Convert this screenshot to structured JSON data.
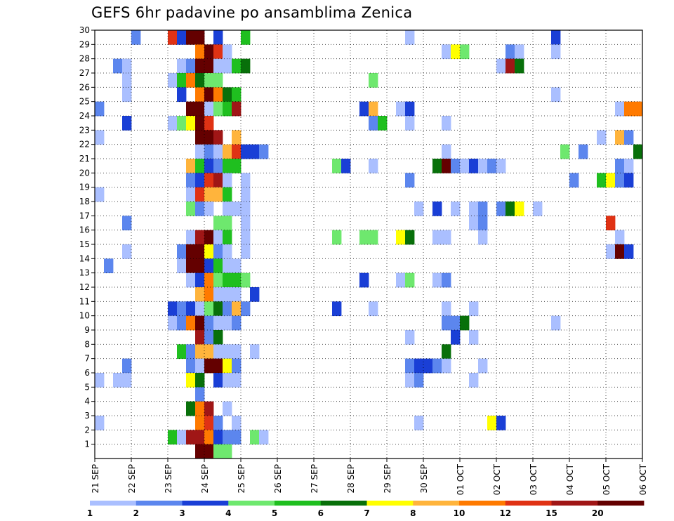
{
  "chart_data": {
    "type": "heatmap",
    "title": "GEFS 6hr padavine po ansamblima Zenica",
    "xlabel": "",
    "ylabel": "",
    "x_tick_labels": [
      "21 SEP",
      "22 SEP",
      "23 SEP",
      "24 SEP",
      "25 SEP",
      "26 SEP",
      "27 SEP",
      "28 SEP",
      "29 SEP",
      "30 SEP",
      "01 OCT",
      "02 OCT",
      "03 OCT",
      "04 OCT",
      "05 OCT",
      "06 OCT"
    ],
    "x_steps_per_day": 4,
    "x_range": [
      0,
      60
    ],
    "y_range": [
      0,
      30
    ],
    "y_tick_labels": [
      1,
      2,
      3,
      4,
      5,
      6,
      7,
      8,
      9,
      10,
      11,
      12,
      13,
      14,
      15,
      16,
      17,
      18,
      19,
      20,
      21,
      22,
      23,
      24,
      25,
      26,
      27,
      28,
      29,
      30
    ],
    "grid": true,
    "colorbar": {
      "position": "bottom",
      "labels": [
        "1",
        "2",
        "3",
        "4",
        "5",
        "6",
        "7",
        "8",
        "10",
        "12",
        "15",
        "20"
      ],
      "colors": [
        "#aabfff",
        "#5c86ee",
        "#1a3fd6",
        "#6ee86e",
        "#1fbf1f",
        "#08700a",
        "#ffff00",
        "#ffb43c",
        "#ff7a00",
        "#e03214",
        "#a01616",
        "#640000"
      ]
    },
    "cells": [
      {
        "y": 30,
        "cells": [
          [
            4,
            1
          ],
          [
            8,
            9
          ],
          [
            9,
            2
          ],
          [
            10,
            11
          ],
          [
            11,
            11
          ],
          [
            13,
            2
          ],
          [
            16,
            4
          ],
          [
            34,
            0
          ],
          [
            50,
            2
          ]
        ]
      },
      {
        "y": 29,
        "cells": [
          [
            11,
            8
          ],
          [
            12,
            11
          ],
          [
            13,
            9
          ],
          [
            14,
            0
          ],
          [
            38,
            0
          ],
          [
            39,
            6
          ],
          [
            40,
            3
          ],
          [
            45,
            1
          ],
          [
            46,
            0
          ],
          [
            50,
            0
          ]
        ]
      },
      {
        "y": 28,
        "cells": [
          [
            2,
            1
          ],
          [
            3,
            0
          ],
          [
            9,
            0
          ],
          [
            10,
            1
          ],
          [
            11,
            11
          ],
          [
            12,
            11
          ],
          [
            13,
            0
          ],
          [
            14,
            0
          ],
          [
            15,
            4
          ],
          [
            16,
            5
          ],
          [
            44,
            0
          ],
          [
            45,
            10
          ],
          [
            46,
            5
          ]
        ]
      },
      {
        "y": 27,
        "cells": [
          [
            3,
            0
          ],
          [
            8,
            0
          ],
          [
            9,
            4
          ],
          [
            10,
            8
          ],
          [
            11,
            5
          ],
          [
            12,
            3
          ],
          [
            13,
            3
          ],
          [
            30,
            3
          ]
        ]
      },
      {
        "y": 26,
        "cells": [
          [
            3,
            0
          ],
          [
            9,
            2
          ],
          [
            11,
            8
          ],
          [
            12,
            11
          ],
          [
            13,
            8
          ],
          [
            14,
            5
          ],
          [
            15,
            4
          ],
          [
            50,
            0
          ]
        ]
      },
      {
        "y": 25,
        "cells": [
          [
            0,
            1
          ],
          [
            10,
            11
          ],
          [
            11,
            11
          ],
          [
            12,
            0
          ],
          [
            13,
            3
          ],
          [
            14,
            4
          ],
          [
            15,
            10
          ],
          [
            29,
            2
          ],
          [
            30,
            7
          ],
          [
            33,
            0
          ],
          [
            34,
            2
          ],
          [
            57,
            0
          ],
          [
            58,
            8
          ],
          [
            59,
            8
          ]
        ]
      },
      {
        "y": 24,
        "cells": [
          [
            3,
            2
          ],
          [
            8,
            0
          ],
          [
            9,
            3
          ],
          [
            10,
            6
          ],
          [
            11,
            11
          ],
          [
            12,
            9
          ],
          [
            30,
            1
          ],
          [
            31,
            4
          ],
          [
            34,
            0
          ],
          [
            38,
            0
          ]
        ]
      },
      {
        "y": 23,
        "cells": [
          [
            0,
            0
          ],
          [
            11,
            11
          ],
          [
            12,
            11
          ],
          [
            13,
            10
          ],
          [
            15,
            7
          ],
          [
            55,
            0
          ],
          [
            57,
            7
          ],
          [
            58,
            1
          ]
        ]
      },
      {
        "y": 22,
        "cells": [
          [
            11,
            0
          ],
          [
            12,
            1
          ],
          [
            13,
            0
          ],
          [
            14,
            7
          ],
          [
            15,
            9
          ],
          [
            16,
            2
          ],
          [
            17,
            2
          ],
          [
            18,
            1
          ],
          [
            38,
            0
          ],
          [
            51,
            3
          ],
          [
            53,
            1
          ],
          [
            59,
            5
          ]
        ]
      },
      {
        "y": 21,
        "cells": [
          [
            10,
            7
          ],
          [
            11,
            4
          ],
          [
            12,
            2
          ],
          [
            13,
            1
          ],
          [
            14,
            4
          ],
          [
            15,
            4
          ],
          [
            26,
            3
          ],
          [
            27,
            2
          ],
          [
            30,
            0
          ],
          [
            37,
            5
          ],
          [
            38,
            11
          ],
          [
            39,
            1
          ],
          [
            40,
            0
          ],
          [
            41,
            2
          ],
          [
            42,
            0
          ],
          [
            43,
            1
          ],
          [
            44,
            0
          ],
          [
            57,
            1
          ],
          [
            58,
            0
          ]
        ]
      },
      {
        "y": 20,
        "cells": [
          [
            10,
            1
          ],
          [
            11,
            2
          ],
          [
            12,
            9
          ],
          [
            13,
            10
          ],
          [
            14,
            0
          ],
          [
            16,
            0
          ],
          [
            34,
            1
          ],
          [
            52,
            1
          ],
          [
            55,
            4
          ],
          [
            56,
            6
          ],
          [
            57,
            1
          ],
          [
            58,
            2
          ]
        ]
      },
      {
        "y": 19,
        "cells": [
          [
            0,
            0
          ],
          [
            10,
            0
          ],
          [
            11,
            9
          ],
          [
            12,
            7
          ],
          [
            13,
            7
          ],
          [
            14,
            4
          ],
          [
            16,
            0
          ]
        ]
      },
      {
        "y": 18,
        "cells": [
          [
            10,
            3
          ],
          [
            11,
            1
          ],
          [
            12,
            0
          ],
          [
            14,
            0
          ],
          [
            15,
            0
          ],
          [
            16,
            0
          ],
          [
            35,
            0
          ],
          [
            37,
            2
          ],
          [
            39,
            0
          ],
          [
            41,
            0
          ],
          [
            42,
            1
          ],
          [
            44,
            1
          ],
          [
            45,
            5
          ],
          [
            46,
            6
          ],
          [
            48,
            0
          ]
        ]
      },
      {
        "y": 17,
        "cells": [
          [
            3,
            1
          ],
          [
            13,
            3
          ],
          [
            14,
            3
          ],
          [
            16,
            0
          ],
          [
            41,
            0
          ],
          [
            42,
            1
          ],
          [
            56,
            9
          ]
        ]
      },
      {
        "y": 16,
        "cells": [
          [
            10,
            0
          ],
          [
            11,
            10
          ],
          [
            12,
            11
          ],
          [
            13,
            0
          ],
          [
            14,
            4
          ],
          [
            16,
            0
          ],
          [
            26,
            3
          ],
          [
            29,
            3
          ],
          [
            30,
            3
          ],
          [
            33,
            6
          ],
          [
            34,
            5
          ],
          [
            37,
            0
          ],
          [
            38,
            0
          ],
          [
            42,
            0
          ],
          [
            57,
            0
          ]
        ]
      },
      {
        "y": 15,
        "cells": [
          [
            3,
            0
          ],
          [
            9,
            1
          ],
          [
            10,
            11
          ],
          [
            11,
            11
          ],
          [
            12,
            6
          ],
          [
            13,
            1
          ],
          [
            14,
            0
          ],
          [
            16,
            0
          ],
          [
            56,
            0
          ],
          [
            57,
            11
          ],
          [
            58,
            2
          ]
        ]
      },
      {
        "y": 14,
        "cells": [
          [
            1,
            1
          ],
          [
            9,
            0
          ],
          [
            10,
            11
          ],
          [
            11,
            11
          ],
          [
            12,
            2
          ],
          [
            13,
            4
          ],
          [
            14,
            0
          ],
          [
            15,
            0
          ]
        ]
      },
      {
        "y": 13,
        "cells": [
          [
            10,
            0
          ],
          [
            11,
            2
          ],
          [
            12,
            8
          ],
          [
            13,
            3
          ],
          [
            14,
            4
          ],
          [
            15,
            4
          ],
          [
            16,
            3
          ],
          [
            29,
            2
          ],
          [
            33,
            0
          ],
          [
            34,
            3
          ],
          [
            37,
            0
          ],
          [
            38,
            1
          ]
        ]
      },
      {
        "y": 12,
        "cells": [
          [
            11,
            7
          ],
          [
            12,
            8
          ],
          [
            13,
            0
          ],
          [
            14,
            0
          ],
          [
            15,
            0
          ],
          [
            17,
            2
          ]
        ]
      },
      {
        "y": 11,
        "cells": [
          [
            8,
            2
          ],
          [
            9,
            1
          ],
          [
            10,
            2
          ],
          [
            11,
            0
          ],
          [
            12,
            3
          ],
          [
            13,
            5
          ],
          [
            14,
            1
          ],
          [
            15,
            7
          ],
          [
            16,
            1
          ],
          [
            26,
            2
          ],
          [
            30,
            0
          ],
          [
            38,
            0
          ],
          [
            41,
            0
          ]
        ]
      },
      {
        "y": 10,
        "cells": [
          [
            8,
            0
          ],
          [
            9,
            1
          ],
          [
            10,
            8
          ],
          [
            11,
            11
          ],
          [
            12,
            1
          ],
          [
            13,
            0
          ],
          [
            14,
            0
          ],
          [
            15,
            1
          ],
          [
            38,
            1
          ],
          [
            39,
            1
          ],
          [
            40,
            5
          ],
          [
            50,
            0
          ]
        ]
      },
      {
        "y": 9,
        "cells": [
          [
            11,
            10
          ],
          [
            12,
            1
          ],
          [
            13,
            5
          ],
          [
            34,
            0
          ],
          [
            39,
            2
          ],
          [
            41,
            0
          ]
        ]
      },
      {
        "y": 8,
        "cells": [
          [
            9,
            4
          ],
          [
            10,
            1
          ],
          [
            11,
            7
          ],
          [
            12,
            7
          ],
          [
            13,
            0
          ],
          [
            14,
            0
          ],
          [
            15,
            0
          ],
          [
            17,
            0
          ],
          [
            38,
            5
          ]
        ]
      },
      {
        "y": 7,
        "cells": [
          [
            3,
            1
          ],
          [
            10,
            1
          ],
          [
            11,
            0
          ],
          [
            12,
            11
          ],
          [
            13,
            11
          ],
          [
            14,
            6
          ],
          [
            15,
            1
          ],
          [
            34,
            1
          ],
          [
            35,
            2
          ],
          [
            36,
            2
          ],
          [
            37,
            1
          ],
          [
            38,
            0
          ],
          [
            42,
            0
          ]
        ]
      },
      {
        "y": 6,
        "cells": [
          [
            0,
            0
          ],
          [
            2,
            0
          ],
          [
            3,
            0
          ],
          [
            10,
            6
          ],
          [
            11,
            5
          ],
          [
            13,
            2
          ],
          [
            14,
            0
          ],
          [
            15,
            0
          ],
          [
            34,
            0
          ],
          [
            35,
            1
          ],
          [
            41,
            0
          ]
        ]
      },
      {
        "y": 5,
        "cells": [
          [
            11,
            1
          ]
        ]
      },
      {
        "y": 4,
        "cells": [
          [
            10,
            5
          ],
          [
            11,
            8
          ],
          [
            12,
            10
          ],
          [
            14,
            0
          ]
        ]
      },
      {
        "y": 3,
        "cells": [
          [
            0,
            0
          ],
          [
            11,
            8
          ],
          [
            12,
            9
          ],
          [
            13,
            1
          ],
          [
            15,
            0
          ],
          [
            35,
            0
          ],
          [
            43,
            6
          ],
          [
            44,
            2
          ]
        ]
      },
      {
        "y": 2,
        "cells": [
          [
            8,
            4
          ],
          [
            9,
            0
          ],
          [
            10,
            10
          ],
          [
            11,
            10
          ],
          [
            12,
            8
          ],
          [
            13,
            2
          ],
          [
            14,
            1
          ],
          [
            15,
            1
          ],
          [
            17,
            3
          ],
          [
            18,
            0
          ]
        ]
      },
      {
        "y": 1,
        "cells": [
          [
            11,
            11
          ],
          [
            12,
            11
          ],
          [
            13,
            3
          ],
          [
            14,
            3
          ]
        ]
      }
    ]
  }
}
